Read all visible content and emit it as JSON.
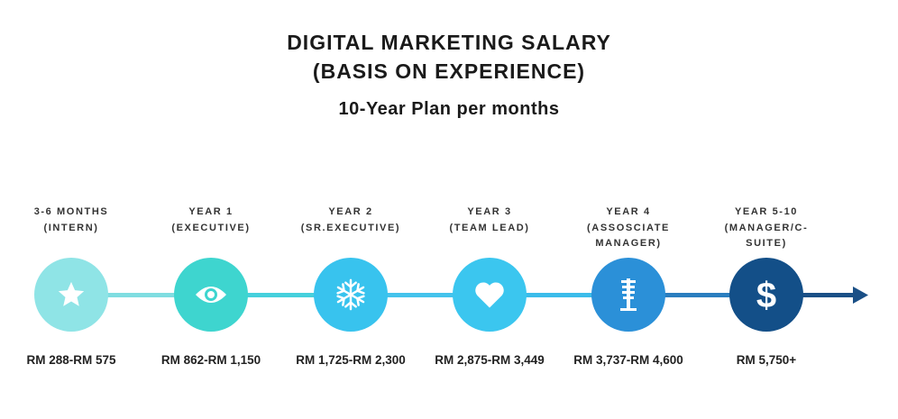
{
  "header": {
    "title_line1": "DIGITAL MARKETING SALARY",
    "title_line2": "(BASIS ON EXPERIENCE)",
    "subtitle": "10-Year Plan per months"
  },
  "stages": [
    {
      "period": "3-6 MONTHS",
      "role": "(INTERN)",
      "salary": "RM 288-RM 575",
      "icon": "star-icon",
      "color": "#8fe4e6"
    },
    {
      "period": "YEAR 1",
      "role": "(EXECUTIVE)",
      "salary": "RM 862-RM 1,150",
      "icon": "eye-icon",
      "color": "#3ed5cf"
    },
    {
      "period": "YEAR 2",
      "role": "(SR.EXECUTIVE)",
      "salary": "RM 1,725-RM 2,300",
      "icon": "snowflake-icon",
      "color": "#38c3ee"
    },
    {
      "period": "YEAR 3",
      "role": "(TEAM LEAD)",
      "salary": "RM 2,875-RM 3,449",
      "icon": "heart-icon",
      "color": "#3bc6ef"
    },
    {
      "period": "YEAR 4",
      "role": "(ASSOSCIATE MANAGER)",
      "salary": "RM 3,737-RM 4,600",
      "icon": "microphone-icon",
      "color": "#2b90d8"
    },
    {
      "period": "YEAR 5-10",
      "role": "(MANAGER/C-SUITE)",
      "salary": "RM 5,750+",
      "icon": "dollar-icon",
      "color": "#134f88"
    }
  ]
}
